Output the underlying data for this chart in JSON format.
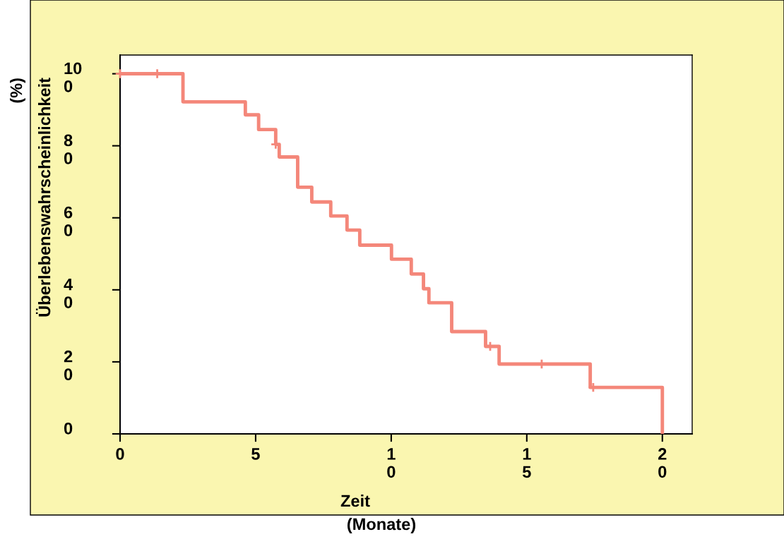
{
  "chart_data": {
    "type": "step",
    "xlabel": "Zeit (Monate)",
    "ylabel": "Überlebenswahrscheinlichkeit (%)",
    "series": [
      {
        "color": "#f4877a",
        "marker": "none",
        "x": [
          0,
          2.32,
          4.62,
          5.11,
          5.74,
          5.87,
          6.55,
          7.07,
          7.77,
          8.37,
          8.84,
          10.01,
          10.74,
          11.19,
          11.39,
          12.23,
          13.48,
          13.98,
          17.34,
          20
        ],
        "values": [
          100,
          92.2,
          88.6,
          84.5,
          80.4,
          76.9,
          68.5,
          64.4,
          60.5,
          56.6,
          52.4,
          48.5,
          44.4,
          40.3,
          36.4,
          28.4,
          24.3,
          19.4,
          12.9,
          0
        ]
      },
      {
        "type": "scatter",
        "color": "#f4877a",
        "marker": "cross",
        "x": [
          0,
          1.37,
          5.74,
          13.65,
          15.55,
          17.45
        ],
        "values": [
          100,
          100,
          80.4,
          24.3,
          19.4,
          12.9
        ]
      }
    ],
    "xlim": [
      0,
      21.1
    ],
    "ylim": [
      0,
      105.2
    ],
    "xticks": [
      0,
      5,
      10,
      15,
      20
    ],
    "yticks": [
      0,
      20,
      40,
      60,
      80,
      100
    ],
    "grid": false,
    "legend": false
  }
}
